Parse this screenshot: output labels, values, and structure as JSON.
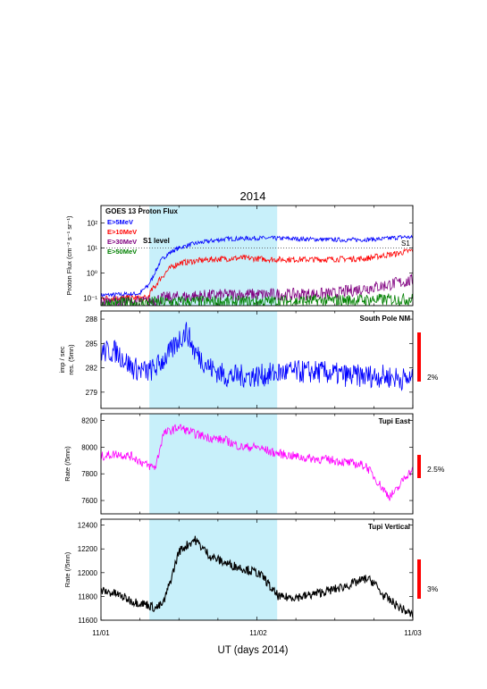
{
  "title": "2014",
  "xlabel": "UT (days 2014)",
  "x_ticks": [
    "11/01",
    "11/02",
    "11/03"
  ],
  "colors": {
    "shade": "#c8f0fa",
    "blue": "#0000ff",
    "red": "#ff0000",
    "purple": "#800080",
    "green": "#008000",
    "magenta": "#ff00ff",
    "black": "#000000"
  },
  "chart_data": [
    {
      "type": "line",
      "title": "GOES 13 Proton Flux",
      "ylabel": "Proton Flux (cm⁻² s⁻¹ sr⁻¹)",
      "yscale": "log",
      "ylim": [
        0.05,
        500
      ],
      "y_ticks": [
        "10⁻¹",
        "10⁰",
        "10¹",
        "10²"
      ],
      "annotations": [
        "S1  level",
        "S1"
      ],
      "shaded_interval_days": [
        1.31,
        2.13
      ],
      "s1_threshold": 10,
      "series": [
        {
          "name": "E>5MeV",
          "color": "#0000ff",
          "x": [
            1.0,
            1.25,
            1.3,
            1.33,
            1.36,
            1.4,
            1.5,
            1.6,
            1.7,
            1.8,
            2.0,
            2.2,
            2.4,
            2.6,
            2.8,
            2.95,
            3.0
          ],
          "y": [
            0.13,
            0.15,
            0.3,
            0.6,
            1.5,
            4,
            10,
            15,
            19,
            23,
            25,
            24,
            22,
            21,
            23,
            28,
            26
          ]
        },
        {
          "name": "E>10MeV",
          "color": "#ff0000",
          "x": [
            1.0,
            1.3,
            1.35,
            1.4,
            1.5,
            1.7,
            1.9,
            2.1,
            2.4,
            2.7,
            2.9,
            3.0
          ],
          "y": [
            0.1,
            0.1,
            0.3,
            0.8,
            2.5,
            3.5,
            4.0,
            3.5,
            3.5,
            3.8,
            6,
            8
          ]
        },
        {
          "name": "E>30MeV",
          "color": "#800080",
          "x": [
            1.0,
            1.3,
            1.4,
            1.6,
            1.9,
            2.2,
            2.5,
            2.8,
            3.0
          ],
          "y": [
            0.07,
            0.07,
            0.1,
            0.12,
            0.14,
            0.14,
            0.15,
            0.3,
            0.5
          ]
        },
        {
          "name": "E>50MeV",
          "color": "#008000",
          "x": [
            1.0,
            1.5,
            2.0,
            2.5,
            3.0
          ],
          "y": [
            0.06,
            0.07,
            0.07,
            0.08,
            0.09
          ]
        }
      ]
    },
    {
      "type": "line",
      "title": "South Pole NM",
      "ylabel": "imp / sec",
      "ylabel2": "res. (5mn)",
      "ylim": [
        277,
        289
      ],
      "y_ticks": [
        279,
        282,
        285,
        288
      ],
      "scale_bar": "2%",
      "series": [
        {
          "name": "",
          "color": "#0000ff",
          "x": [
            1.0,
            1.1,
            1.2,
            1.3,
            1.35,
            1.45,
            1.5,
            1.55,
            1.6,
            1.7,
            1.8,
            2.0,
            2.2,
            2.4,
            2.6,
            2.8,
            3.0
          ],
          "y": [
            284,
            284,
            282,
            281.5,
            282,
            284,
            285.5,
            286.5,
            284,
            282,
            281,
            281,
            281.5,
            281.5,
            281,
            281,
            280.5
          ]
        }
      ]
    },
    {
      "type": "line",
      "title": "Tupi East",
      "ylabel": "Rate (/5mn)",
      "ylim": [
        7500,
        8250
      ],
      "y_ticks": [
        7600,
        7800,
        8000,
        8200
      ],
      "scale_bar": "2.5%",
      "series": [
        {
          "name": "",
          "color": "#ff00ff",
          "x": [
            1.0,
            1.1,
            1.2,
            1.3,
            1.35,
            1.4,
            1.5,
            1.6,
            1.7,
            1.8,
            1.9,
            2.0,
            2.1,
            2.3,
            2.5,
            2.7,
            2.8,
            2.85,
            2.9,
            2.95,
            3.0
          ],
          "y": [
            7930,
            7950,
            7930,
            7860,
            7850,
            8100,
            8150,
            8100,
            8070,
            8050,
            8000,
            8000,
            7960,
            7920,
            7900,
            7860,
            7700,
            7630,
            7680,
            7780,
            7830
          ]
        }
      ]
    },
    {
      "type": "line",
      "title": "Tupi Vertical",
      "ylabel": "Rate (/5mn)",
      "ylim": [
        11600,
        12450
      ],
      "y_ticks": [
        11600,
        11800,
        12000,
        12200,
        12400
      ],
      "scale_bar": "3%",
      "series": [
        {
          "name": "",
          "color": "#000000",
          "x": [
            1.0,
            1.1,
            1.2,
            1.3,
            1.35,
            1.4,
            1.45,
            1.5,
            1.6,
            1.7,
            1.8,
            1.9,
            2.0,
            2.05,
            2.1,
            2.15,
            2.3,
            2.5,
            2.6,
            2.7,
            2.75,
            2.8,
            2.9,
            2.95,
            3.0
          ],
          "y": [
            11850,
            11820,
            11760,
            11730,
            11700,
            11740,
            11950,
            12180,
            12280,
            12140,
            12080,
            12040,
            12000,
            11950,
            11850,
            11790,
            11800,
            11860,
            11900,
            11950,
            11920,
            11820,
            11720,
            11680,
            11640
          ]
        }
      ]
    }
  ]
}
